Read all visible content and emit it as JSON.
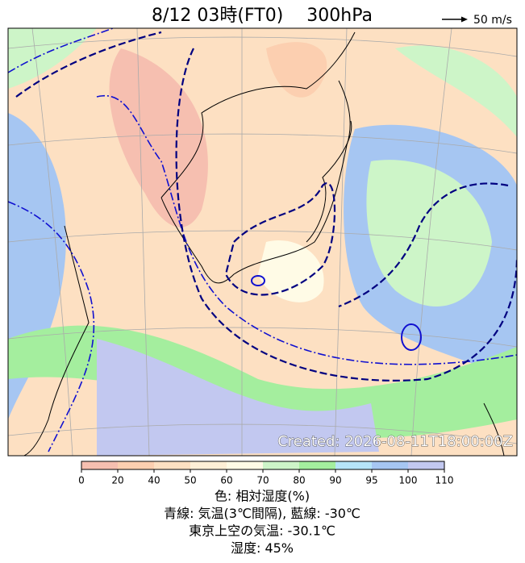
{
  "header": {
    "title": "8/12 03時(FT0)　 300hPa",
    "wind_scale": "50 m/s"
  },
  "map": {
    "created": "Created: 2026-08-11T18:00:00Z"
  },
  "colorbar": {
    "ticks": [
      0,
      20,
      40,
      50,
      60,
      70,
      80,
      90,
      95,
      100,
      110
    ],
    "colors": [
      "#f6bfb0",
      "#fccfb0",
      "#fde0c2",
      "#feefd6",
      "#fffbe6",
      "#cdf5c8",
      "#a4ee9e",
      "#b6e4f8",
      "#a6c6f2",
      "#c2c8f0"
    ]
  },
  "caption": [
    "色: 相対湿度(%)",
    "青線: 気温(3℃間隔), 藍線: -30℃",
    "東京上空の気温: -30.1℃",
    "湿度: 45%"
  ]
}
